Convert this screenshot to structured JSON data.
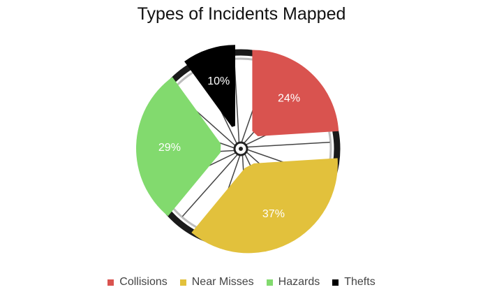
{
  "chart_data": {
    "type": "pie",
    "title": "Types of Incidents Mapped",
    "categories": [
      "Collisions",
      "Near Misses",
      "Hazards",
      "Thefts"
    ],
    "values": [
      24,
      37,
      29,
      10
    ],
    "labels": [
      "24%",
      "37%",
      "29%",
      "10%"
    ],
    "colors": [
      "#d9534f",
      "#e2c13c",
      "#82da6e",
      "#000000"
    ],
    "label_colors": [
      "#ffffff",
      "#ffffff",
      "#ffffff",
      "#ffffff"
    ],
    "legend_position": "bottom"
  }
}
